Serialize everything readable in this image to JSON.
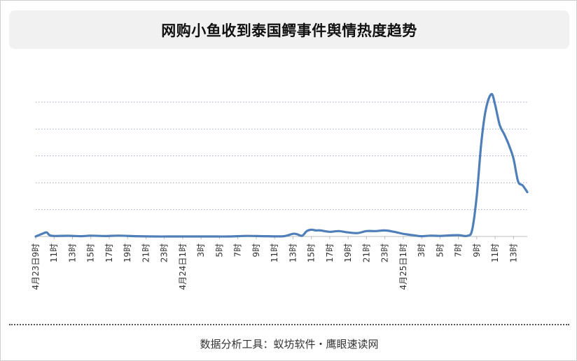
{
  "title": "网购小鱼收到泰国鳄事件舆情热度趋势",
  "footer": "数据分析工具：蚁坊软件・鹰眼速读网",
  "colors": {
    "line": "#4f7fb8",
    "grid": "#9aa9c0",
    "axis": "#bbbbbb",
    "tick_text": "#333333",
    "title_bg": "#f1f1f1"
  },
  "chart_data": {
    "type": "line",
    "title": "网购小鱼收到泰国鳄事件舆情热度趋势",
    "xlabel": "",
    "ylabel": "",
    "ylim": [
      0,
      100
    ],
    "y_gridlines": [
      20,
      40,
      60,
      80,
      100
    ],
    "y_axis_labels_shown": false,
    "tick_labels": [
      "4月23日9时",
      "11时",
      "13时",
      "15时",
      "17时",
      "19时",
      "21时",
      "23时",
      "4月24日1时",
      "3时",
      "5时",
      "7时",
      "9时",
      "11时",
      "13时",
      "15时",
      "17时",
      "19时",
      "21时",
      "23时",
      "4月25日1时",
      "3时",
      "5时",
      "7时",
      "9时",
      "11时",
      "13时"
    ],
    "x": [
      0,
      0.7,
      1.2,
      1.7,
      3.5,
      5,
      6,
      7.5,
      9,
      11,
      13,
      15,
      17,
      19,
      21,
      23,
      25,
      27,
      28,
      28.5,
      29,
      29.5,
      30,
      30.5,
      31,
      32,
      33,
      34,
      35,
      36,
      37,
      38,
      39,
      40,
      41,
      42,
      43,
      44,
      45,
      46,
      47,
      47.5,
      48,
      48.5,
      49,
      49.6,
      50,
      50.5,
      51,
      51.5,
      52,
      52.5,
      53,
      53.5
    ],
    "values": [
      0,
      2,
      3,
      0.5,
      0.5,
      0.2,
      0.6,
      0.3,
      0.6,
      0.2,
      0,
      0,
      0,
      0,
      0,
      0.4,
      0.2,
      0.2,
      2,
      1.5,
      0.5,
      4,
      5,
      4.5,
      4.5,
      3.5,
      4,
      3,
      2.5,
      4,
      4,
      4.5,
      3.5,
      2,
      1,
      0.2,
      0.6,
      0.4,
      0.8,
      1,
      0.5,
      5,
      30,
      70,
      95,
      106,
      98,
      83,
      76,
      68,
      58,
      41,
      38,
      33
    ]
  }
}
